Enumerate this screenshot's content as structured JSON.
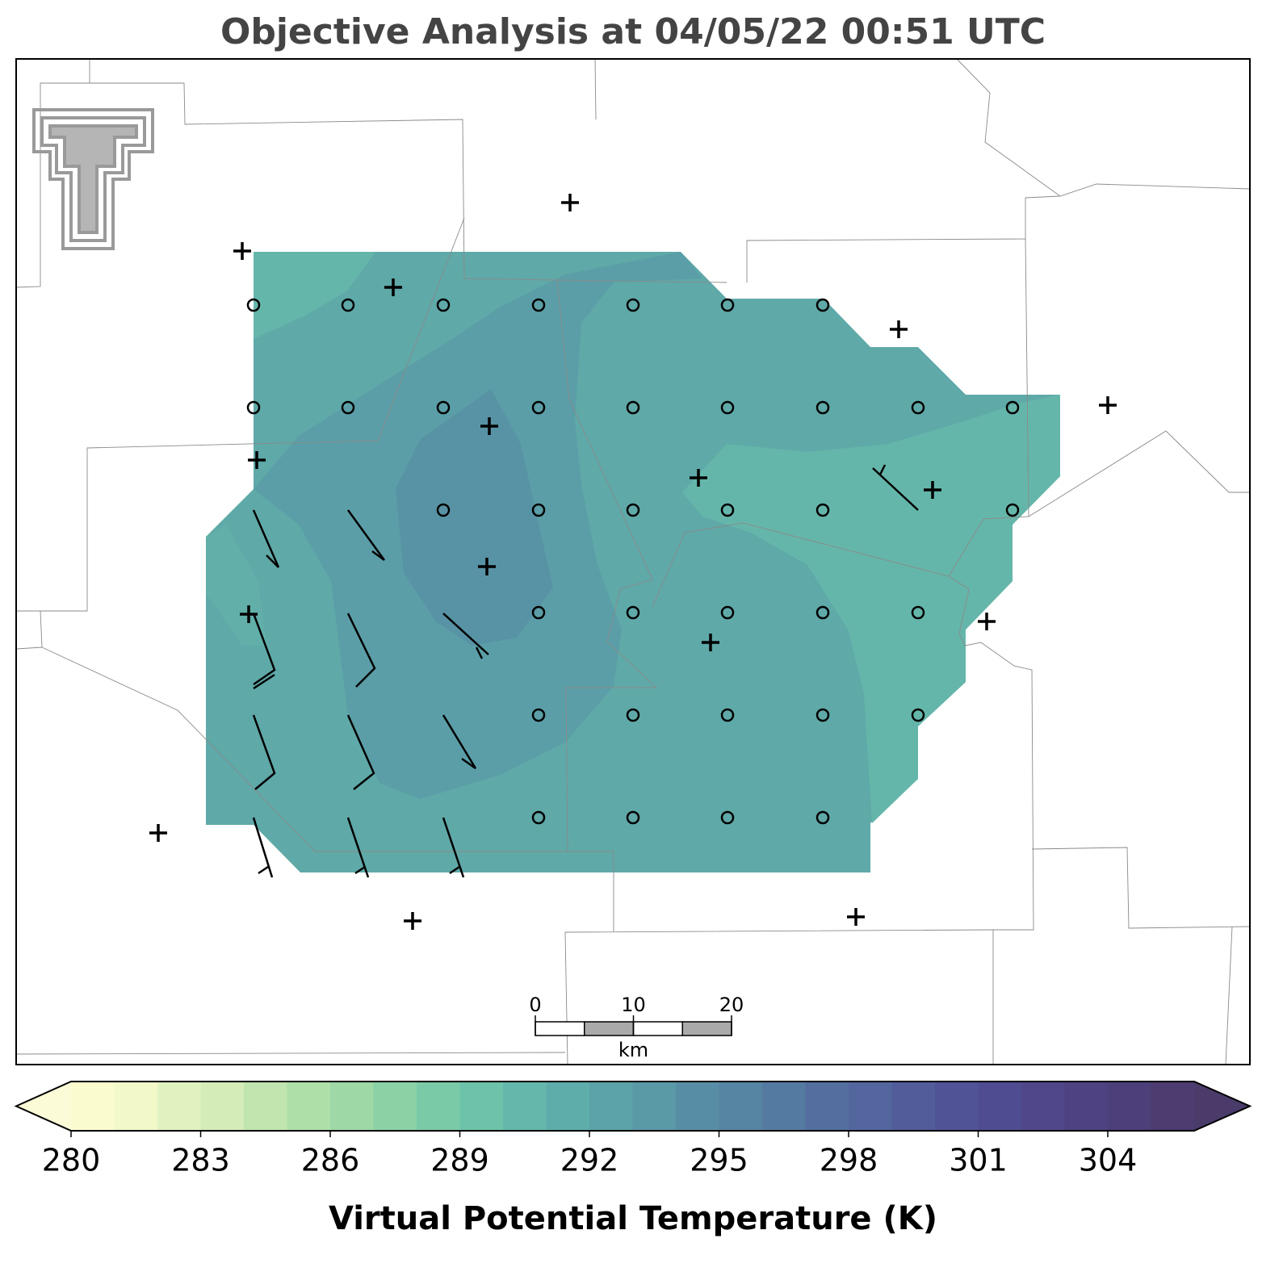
{
  "chart_data": {
    "type": "contour-map",
    "title": "Objective Analysis at 04/05/22 00:51 UTC",
    "colorbar": {
      "label": "Virtual Potential Temperature (K)",
      "lim": [
        280,
        306
      ],
      "ticks": [
        280,
        283,
        286,
        289,
        292,
        295,
        298,
        301,
        304
      ],
      "colors": [
        "#fbfbd0",
        "#f3f8c9",
        "#e1f2c1",
        "#d3ecb8",
        "#c0e5ae",
        "#afdfa8",
        "#9dd8a6",
        "#8bd1a6",
        "#7acaa8",
        "#6dc3aa",
        "#64b8ab",
        "#5fadaa",
        "#5ba3a8",
        "#5a99a6",
        "#588ea5",
        "#5684a3",
        "#557aa1",
        "#546f9f",
        "#53669d",
        "#525c9b",
        "#515397",
        "#504c91",
        "#50478a",
        "#4f4282",
        "#4d3f79",
        "#4c3c70"
      ],
      "under_color": "#fbfbd8",
      "over_color": "#4a3b6a"
    },
    "scale_bar": {
      "ticks": [
        0,
        10,
        20
      ],
      "unit": "km"
    }
  }
}
